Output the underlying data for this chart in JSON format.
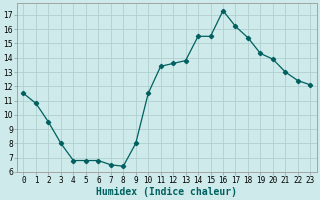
{
  "x": [
    0,
    1,
    2,
    3,
    4,
    5,
    6,
    7,
    8,
    9,
    10,
    11,
    12,
    13,
    14,
    15,
    16,
    17,
    18,
    19,
    20,
    21,
    22,
    23
  ],
  "y": [
    11.5,
    10.8,
    9.5,
    8.0,
    6.8,
    6.8,
    6.8,
    6.5,
    6.4,
    8.0,
    11.5,
    13.4,
    13.6,
    13.8,
    15.5,
    15.5,
    17.3,
    16.2,
    15.4,
    14.3,
    13.9,
    13.0,
    12.4,
    12.1
  ],
  "line_color": "#006060",
  "marker": "D",
  "marker_size": 2.2,
  "xlabel": "Humidex (Indice chaleur)",
  "bg_color": "#ceeaea",
  "grid_color": "#b0d0d0",
  "xlim": [
    -0.5,
    23.5
  ],
  "ylim": [
    6,
    17.8
  ],
  "yticks": [
    6,
    7,
    8,
    9,
    10,
    11,
    12,
    13,
    14,
    15,
    16,
    17
  ],
  "xticks": [
    0,
    1,
    2,
    3,
    4,
    5,
    6,
    7,
    8,
    9,
    10,
    11,
    12,
    13,
    14,
    15,
    16,
    17,
    18,
    19,
    20,
    21,
    22,
    23
  ],
  "tick_fontsize": 5.5,
  "label_fontsize": 7.0
}
